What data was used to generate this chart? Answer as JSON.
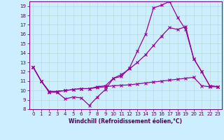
{
  "title": "",
  "xlabel": "Windchill (Refroidissement éolien,°C)",
  "bg_color": "#cceeff",
  "grid_color": "#aaddcc",
  "line_color": "#990099",
  "xlim": [
    -0.5,
    23.5
  ],
  "ylim": [
    8,
    19.5
  ],
  "yticks": [
    8,
    9,
    10,
    11,
    12,
    13,
    14,
    15,
    16,
    17,
    18,
    19
  ],
  "xticks": [
    0,
    1,
    2,
    3,
    4,
    5,
    6,
    7,
    8,
    9,
    10,
    11,
    12,
    13,
    14,
    15,
    16,
    17,
    18,
    19,
    20,
    21,
    22,
    23
  ],
  "line1_x": [
    0,
    1,
    2,
    3,
    4,
    5,
    6,
    7,
    8,
    9,
    10,
    11,
    12,
    13,
    14,
    15,
    16,
    17,
    18,
    19,
    20,
    21,
    22,
    23
  ],
  "line1_y": [
    12.5,
    11.0,
    9.8,
    9.8,
    9.1,
    9.3,
    9.2,
    8.4,
    9.3,
    10.1,
    11.3,
    11.5,
    12.4,
    14.2,
    16.0,
    18.8,
    19.1,
    19.5,
    17.8,
    16.5,
    13.4,
    12.0,
    10.5,
    10.4
  ],
  "line2_x": [
    0,
    1,
    2,
    3,
    4,
    5,
    6,
    7,
    8,
    9,
    10,
    11,
    12,
    13,
    14,
    15,
    16,
    17,
    18,
    19,
    20,
    21,
    22,
    23
  ],
  "line2_y": [
    12.5,
    11.0,
    9.9,
    9.9,
    10.0,
    10.1,
    10.2,
    10.2,
    10.4,
    10.5,
    11.3,
    11.7,
    12.3,
    13.0,
    13.8,
    14.8,
    15.8,
    16.7,
    16.5,
    16.8,
    13.4,
    12.0,
    10.5,
    10.4
  ],
  "line3_x": [
    0,
    1,
    2,
    3,
    4,
    5,
    6,
    7,
    8,
    9,
    10,
    11,
    12,
    13,
    14,
    15,
    16,
    17,
    18,
    19,
    20,
    21,
    22,
    23
  ],
  "line3_y": [
    12.5,
    11.0,
    9.9,
    9.9,
    10.0,
    10.1,
    10.2,
    10.2,
    10.3,
    10.4,
    10.5,
    10.55,
    10.6,
    10.7,
    10.8,
    10.9,
    11.0,
    11.1,
    11.2,
    11.3,
    11.4,
    10.5,
    10.4,
    10.4
  ],
  "marker": "x",
  "markersize": 2.5,
  "linewidth": 0.9,
  "axis_fontsize": 5.5,
  "tick_fontsize": 5.0
}
